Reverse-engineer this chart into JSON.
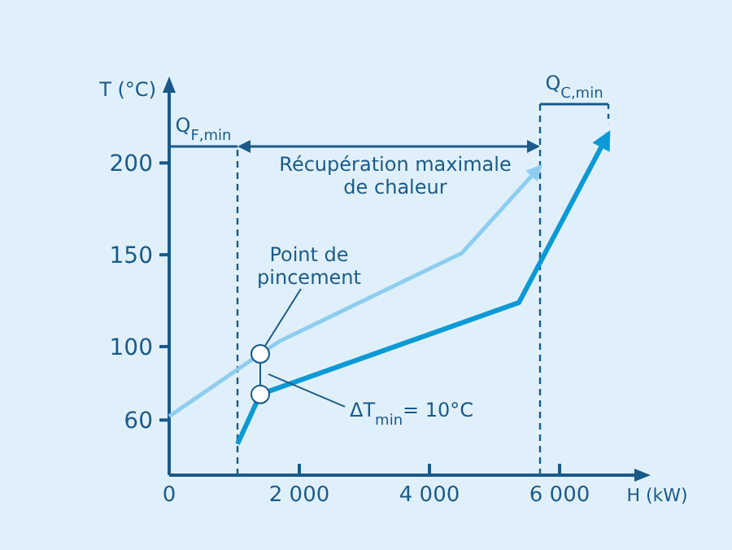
{
  "chart_data": {
    "type": "line",
    "xlabel": "H (kW)",
    "ylabel": "T (°C)",
    "xlim": [
      0,
      7200
    ],
    "ylim": [
      30,
      240
    ],
    "xticks": [
      0,
      {
        "value": 2000,
        "label": "2 000"
      },
      {
        "value": 4000,
        "label": "4 000"
      },
      {
        "value": 6000,
        "label": "6 000"
      }
    ],
    "yticks": [
      60,
      100,
      150,
      200
    ],
    "grid": false,
    "line_style": "solid",
    "series": [
      {
        "color": "#8ecdf0",
        "x": [
          0,
          1400,
          1700,
          4500,
          5700
        ],
        "values": [
          62,
          96,
          103,
          151,
          198
        ]
      },
      {
        "color": "#0b9ad5",
        "x": [
          1050,
          1400,
          5375,
          6750
        ],
        "values": [
          47,
          74,
          124,
          216
        ]
      },
      {
        "type": "scatter",
        "marker": "circle",
        "color": "#ffffff",
        "x": [
          1400,
          1400
        ],
        "values": [
          96,
          74
        ]
      }
    ],
    "ref_lines": [
      {
        "axis": "x",
        "value": 1050,
        "line_style": "dashed",
        "color": "#1a5a8a"
      },
      {
        "axis": "x",
        "value": 5700,
        "line_style": "dashed",
        "color": "#1a5a8a"
      }
    ],
    "annotations": [
      {
        "text": "Point de pincement",
        "x": 1400,
        "y": 96
      },
      {
        "text": "Q$_{F,min}$",
        "x": 1050,
        "y": 209
      },
      "Récupération maximale de chaleur",
      "Q$_{C,min}$",
      "ΔT$_{min}$= 10°C"
    ]
  }
}
